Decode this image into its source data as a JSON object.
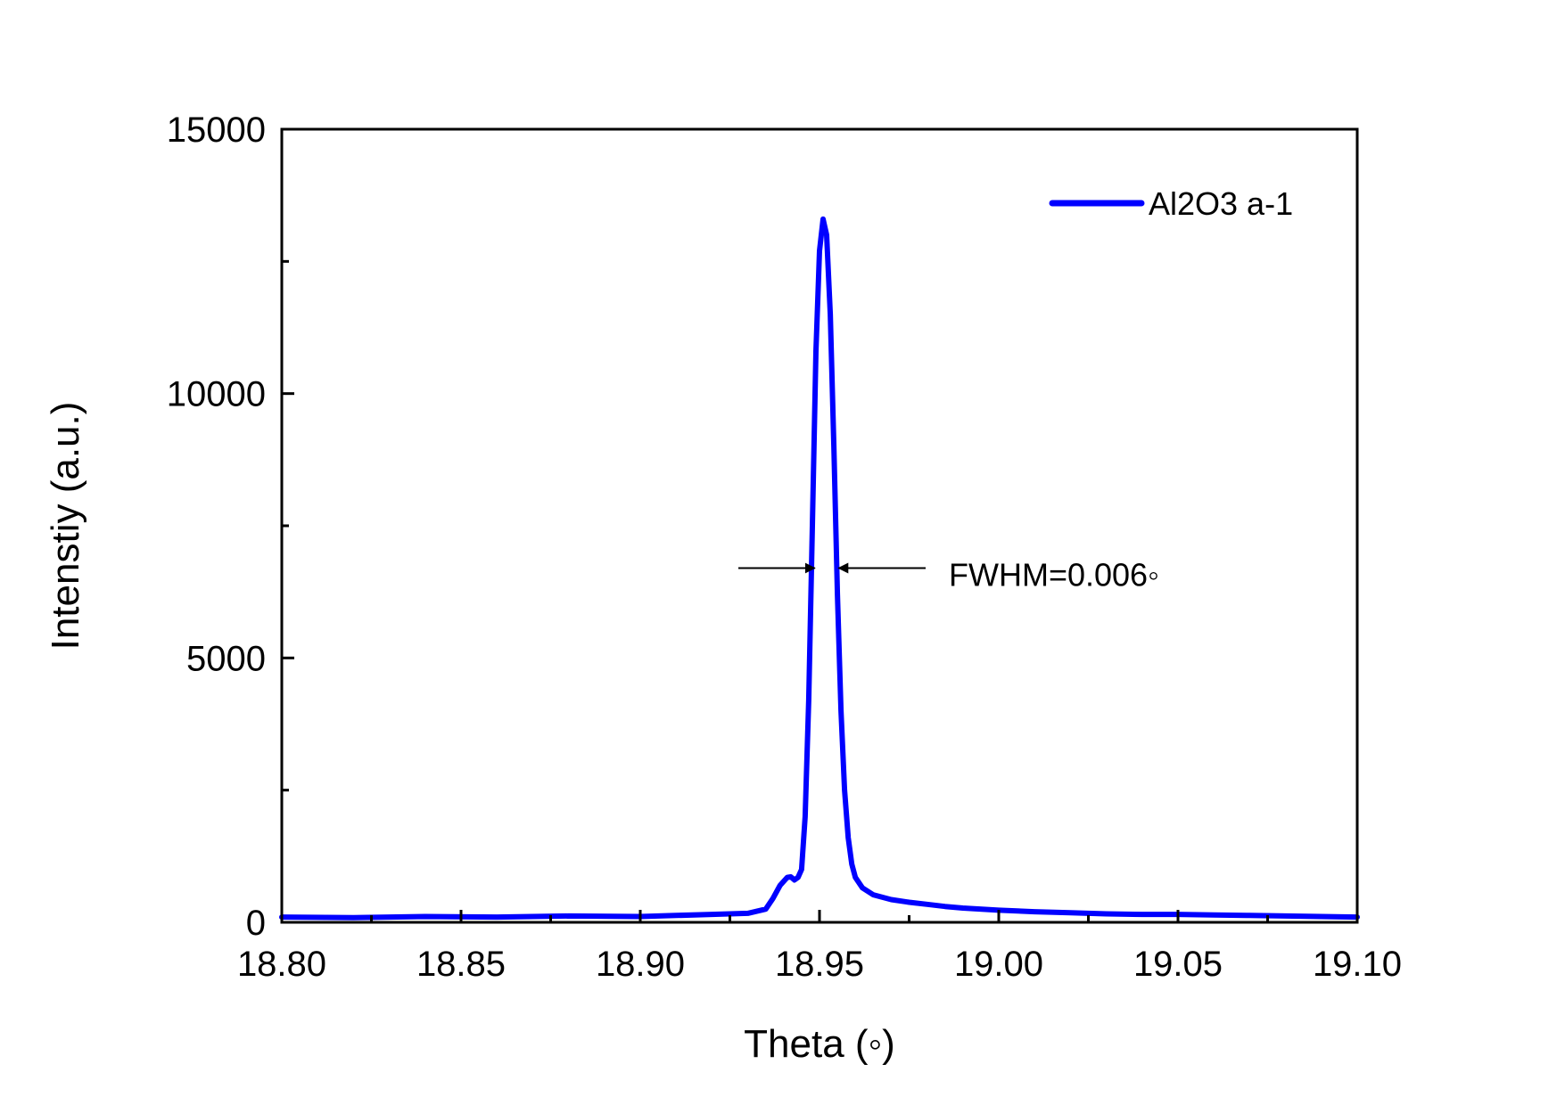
{
  "chart_data": {
    "type": "line",
    "title": "",
    "xlabel": "Theta (◦)",
    "ylabel": "Intenstiy (a.u.)",
    "xlim": [
      18.8,
      19.1
    ],
    "ylim": [
      0,
      15000
    ],
    "xticks": [
      18.8,
      18.85,
      18.9,
      18.95,
      19.0,
      19.05,
      19.1
    ],
    "xtick_labels": [
      "18.80",
      "18.85",
      "18.90",
      "18.95",
      "19.00",
      "19.05",
      "19.10"
    ],
    "yticks": [
      0,
      5000,
      10000,
      15000
    ],
    "ytick_labels": [
      "0",
      "5000",
      "10000",
      "15000"
    ],
    "y_minor_ticks": [
      2500,
      7500,
      12500
    ],
    "x_minor_ticks": [
      18.825,
      18.875,
      18.925,
      18.975,
      19.025,
      19.075
    ],
    "grid": false,
    "legend": {
      "position": "top-right",
      "entries": [
        "Al2O3 a-1"
      ]
    },
    "series": [
      {
        "name": "Al2O3 a-1",
        "color": "#0000ff",
        "x": [
          18.8,
          18.82,
          18.84,
          18.86,
          18.88,
          18.9,
          18.91,
          18.92,
          18.93,
          18.935,
          18.937,
          18.939,
          18.941,
          18.942,
          18.943,
          18.944,
          18.945,
          18.946,
          18.947,
          18.948,
          18.949,
          18.95,
          18.951,
          18.952,
          18.953,
          18.954,
          18.955,
          18.956,
          18.957,
          18.958,
          18.959,
          18.96,
          18.962,
          18.965,
          18.97,
          18.975,
          18.98,
          18.985,
          18.99,
          19.0,
          19.01,
          19.02,
          19.03,
          19.04,
          19.05,
          19.06,
          19.07,
          19.08,
          19.09,
          19.1
        ],
        "y": [
          100,
          90,
          110,
          100,
          120,
          110,
          130,
          150,
          170,
          250,
          450,
          700,
          850,
          860,
          800,
          850,
          1000,
          2000,
          4200,
          7500,
          10800,
          12700,
          13300,
          13000,
          11500,
          9000,
          6200,
          4000,
          2500,
          1600,
          1100,
          850,
          650,
          520,
          430,
          380,
          340,
          300,
          270,
          230,
          200,
          180,
          160,
          150,
          150,
          140,
          130,
          120,
          110,
          100
        ]
      }
    ],
    "annotations": [
      {
        "type": "fwhm-arrows",
        "text": "FWHM=0.006◦",
        "y": 6700,
        "x_left": 18.9487,
        "x_right": 18.9553
      }
    ]
  }
}
